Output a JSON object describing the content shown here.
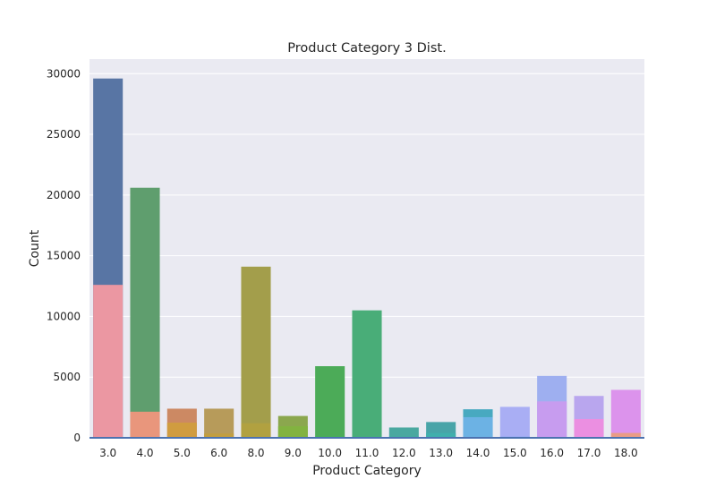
{
  "chart_data": {
    "type": "bar",
    "title": "Product Category 3 Dist.",
    "xlabel": "Product Category",
    "ylabel": "Count",
    "ylim": [
      0,
      31200
    ],
    "yticks": [
      0,
      5000,
      10000,
      15000,
      20000,
      25000,
      30000
    ],
    "grid": true,
    "legend": "none",
    "categories": [
      "3.0",
      "4.0",
      "5.0",
      "6.0",
      "8.0",
      "9.0",
      "10.0",
      "11.0",
      "12.0",
      "13.0",
      "14.0",
      "15.0",
      "16.0",
      "17.0",
      "18.0"
    ],
    "series": [
      {
        "values": [
          29600,
          20600,
          2400,
          2400,
          14100,
          1800,
          5900,
          10500,
          850,
          1300,
          2350,
          2550,
          5100,
          3450,
          3950
        ],
        "colors": [
          "#5875a4",
          "#5f9e6e",
          "#cc8963",
          "#b79b5a",
          "#a39e4b",
          "#8ba74e",
          "#4cab58",
          "#49ad78",
          "#4aa8a0",
          "#48a4a8",
          "#48a9c0",
          "#a9aef4",
          "#9eaff0",
          "#b9a6ee",
          "#dc93ec"
        ]
      },
      {
        "values": [
          12600,
          2150,
          1250,
          350,
          1200,
          950,
          100,
          100,
          100,
          400,
          1700,
          100,
          3000,
          1550,
          400
        ],
        "colors": [
          "#eb97a2",
          "#e9967c",
          "#d09c40",
          "#c29e40",
          "#b1a140",
          "#82b340",
          "#40b660",
          "#40b283",
          "#40b0a0",
          "#40afad",
          "#6cb2e4",
          "#8ea8f5",
          "#c79cef",
          "#eb8fe1",
          "#e99c86"
        ]
      }
    ],
    "bottom_line_color": "#4c72b0"
  },
  "style": {
    "plot_background": "#eaeaf2",
    "grid_color": "#ffffff"
  }
}
